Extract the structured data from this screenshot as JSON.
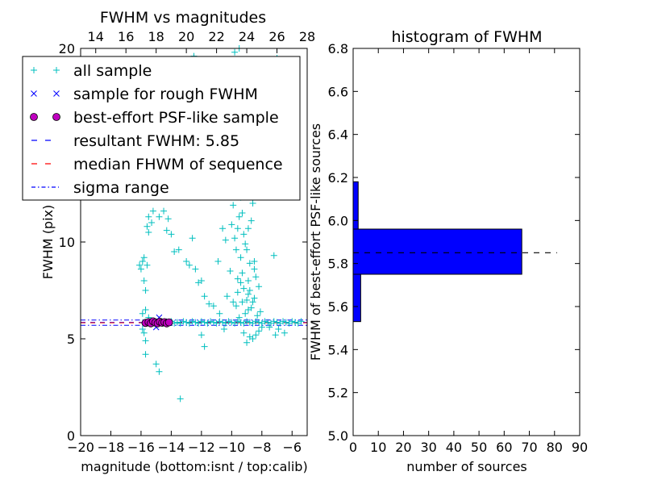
{
  "chart_data": [
    {
      "type": "scatter",
      "title": "FWHM vs magnitudes",
      "xlabel": "magnitude (bottom:isnt / top:calib)",
      "ylabel": "FWHM (pix)",
      "xlim": [
        -20,
        -5
      ],
      "ylim": [
        0,
        20
      ],
      "top_xlim": [
        13,
        28
      ],
      "x_ticks": [
        -20,
        -18,
        -16,
        -14,
        -12,
        -10,
        -8,
        -6
      ],
      "x_tick_labels": [
        "−20",
        "−18",
        "−16",
        "−14",
        "−12",
        "−10",
        "−8",
        "−6"
      ],
      "top_x_ticks": [
        14,
        16,
        18,
        20,
        22,
        24,
        26,
        28
      ],
      "top_x_tick_labels": [
        "14",
        "16",
        "18",
        "20",
        "22",
        "24",
        "26",
        "28"
      ],
      "y_ticks": [
        0,
        5,
        10
      ],
      "y_tick_labels": [
        "0",
        "5",
        "10"
      ],
      "top_left_y_label": "20",
      "legend_position": "upper-left",
      "legend": [
        {
          "label": "all sample",
          "marker": "+",
          "color": "#00bfbf"
        },
        {
          "label": "sample for rough FWHM",
          "marker": "x",
          "color": "#0000ff"
        },
        {
          "label": "best-effort PSF-like sample",
          "marker": "o",
          "color": "#bf00bf"
        },
        {
          "label": "resultant FWHM: 5.85",
          "line": "dashed",
          "color": "#0000ff"
        },
        {
          "label": "median FHWM of sequence",
          "line": "dashed",
          "color": "#ff0000"
        },
        {
          "label": "sigma range",
          "line": "dashdot",
          "color": "#0000ff"
        }
      ],
      "reference_lines": {
        "resultant_fwhm": 5.85,
        "median_fwhm": 5.83,
        "sigma_range": [
          5.7,
          5.97
        ]
      },
      "series": [
        {
          "name": "all sample",
          "marker": "+",
          "color": "#00bfbf",
          "points": [
            [
              -15.8,
              5.8
            ],
            [
              -15.6,
              5.85
            ],
            [
              -15.4,
              5.9
            ],
            [
              -15.2,
              5.8
            ],
            [
              -15.0,
              5.85
            ],
            [
              -14.8,
              5.9
            ],
            [
              -14.6,
              5.8
            ],
            [
              -14.4,
              5.85
            ],
            [
              -14.2,
              5.8
            ],
            [
              -14.0,
              5.9
            ],
            [
              -13.8,
              5.8
            ],
            [
              -13.6,
              5.85
            ],
            [
              -13.4,
              5.8
            ],
            [
              -13.2,
              5.9
            ],
            [
              -13.0,
              5.85
            ],
            [
              -12.8,
              5.8
            ],
            [
              -12.6,
              5.9
            ],
            [
              -12.4,
              5.85
            ],
            [
              -12.2,
              5.8
            ],
            [
              -12.0,
              5.9
            ],
            [
              -11.8,
              5.85
            ],
            [
              -11.6,
              5.8
            ],
            [
              -11.4,
              5.9
            ],
            [
              -11.2,
              5.85
            ],
            [
              -11.0,
              5.8
            ],
            [
              -10.8,
              5.9
            ],
            [
              -10.6,
              5.85
            ],
            [
              -10.4,
              5.8
            ],
            [
              -10.2,
              5.9
            ],
            [
              -10.0,
              5.85
            ],
            [
              -9.8,
              5.8
            ],
            [
              -9.6,
              5.9
            ],
            [
              -9.4,
              5.85
            ],
            [
              -9.2,
              5.8
            ],
            [
              -9.0,
              5.9
            ],
            [
              -8.8,
              5.85
            ],
            [
              -8.6,
              5.8
            ],
            [
              -8.4,
              5.9
            ],
            [
              -8.2,
              5.85
            ],
            [
              -8.0,
              5.8
            ],
            [
              -7.8,
              5.9
            ],
            [
              -7.6,
              5.85
            ],
            [
              -7.4,
              5.8
            ],
            [
              -7.2,
              5.9
            ],
            [
              -7.0,
              5.85
            ],
            [
              -6.8,
              5.8
            ],
            [
              -6.6,
              5.9
            ],
            [
              -6.4,
              5.85
            ],
            [
              -6.2,
              5.8
            ],
            [
              -6.0,
              5.9
            ],
            [
              -5.8,
              5.85
            ],
            [
              -5.6,
              5.8
            ],
            [
              -5.4,
              5.9
            ],
            [
              -15.9,
              6.3
            ],
            [
              -15.7,
              6.5
            ],
            [
              -15.5,
              6.1
            ],
            [
              -15.9,
              5.5
            ],
            [
              -15.8,
              5.3
            ],
            [
              -15.7,
              4.9
            ],
            [
              -15.7,
              4.2
            ],
            [
              -15.0,
              3.7
            ],
            [
              -14.8,
              3.3
            ],
            [
              -13.4,
              1.9
            ],
            [
              -16.1,
              8.8
            ],
            [
              -15.9,
              9.0
            ],
            [
              -15.8,
              9.2
            ],
            [
              -16.0,
              8.6
            ],
            [
              -15.6,
              8.8
            ],
            [
              -15.8,
              8.0
            ],
            [
              -15.7,
              7.5
            ],
            [
              -15.5,
              10.5
            ],
            [
              -15.3,
              11.0
            ],
            [
              -15.5,
              11.3
            ],
            [
              -15.2,
              11.6
            ],
            [
              -15.6,
              10.8
            ],
            [
              -14.8,
              11.3
            ],
            [
              -14.5,
              11.6
            ],
            [
              -14.3,
              10.6
            ],
            [
              -14.0,
              10.4
            ],
            [
              -14.2,
              11.2
            ],
            [
              -13.8,
              9.5
            ],
            [
              -13.5,
              9.6
            ],
            [
              -13.0,
              9.0
            ],
            [
              -12.8,
              8.8
            ],
            [
              -12.6,
              10.2
            ],
            [
              -12.4,
              8.6
            ],
            [
              -12.2,
              7.9
            ],
            [
              -12.0,
              8.0
            ],
            [
              -11.8,
              7.2
            ],
            [
              -11.5,
              6.8
            ],
            [
              -11.2,
              6.7
            ],
            [
              -10.9,
              9.0
            ],
            [
              -10.6,
              10.7
            ],
            [
              -10.4,
              10.1
            ],
            [
              -10.2,
              12.5
            ],
            [
              -10.0,
              10.9
            ],
            [
              -9.9,
              11.9
            ],
            [
              -9.8,
              10.2
            ],
            [
              -9.7,
              9.6
            ],
            [
              -9.6,
              10.7
            ],
            [
              -9.5,
              11.3
            ],
            [
              -9.4,
              12.3
            ],
            [
              -9.3,
              11.5
            ],
            [
              -9.2,
              10.4
            ],
            [
              -9.1,
              9.9
            ],
            [
              -9.0,
              9.6
            ],
            [
              -8.9,
              10.7
            ],
            [
              -8.8,
              8.9
            ],
            [
              -8.7,
              11.1
            ],
            [
              -8.6,
              12.0
            ],
            [
              -8.5,
              9.0
            ],
            [
              -8.4,
              8.2
            ],
            [
              -7.2,
              9.3
            ],
            [
              -9.3,
              8.4
            ],
            [
              -9.6,
              7.4
            ],
            [
              -10.1,
              8.5
            ],
            [
              -8.9,
              7.3
            ],
            [
              -9.2,
              7.6
            ],
            [
              -9.0,
              7.0
            ],
            [
              -8.8,
              7.5
            ],
            [
              -9.4,
              7.9
            ],
            [
              -8.6,
              6.9
            ],
            [
              -8.9,
              6.5
            ],
            [
              -9.1,
              6.3
            ],
            [
              -8.7,
              6.6
            ],
            [
              -9.3,
              6.9
            ],
            [
              -8.5,
              7.1
            ],
            [
              -8.3,
              6.2
            ],
            [
              -9.5,
              6.1
            ],
            [
              -9.7,
              6.7
            ],
            [
              -8.1,
              6.4
            ],
            [
              -8.2,
              5.4
            ],
            [
              -8.0,
              5.6
            ],
            [
              -8.4,
              5.2
            ],
            [
              -8.8,
              5.1
            ],
            [
              -9.2,
              5.3
            ],
            [
              -9.0,
              4.8
            ],
            [
              -8.6,
              5.0
            ],
            [
              -7.5,
              5.6
            ],
            [
              -7.1,
              5.2
            ],
            [
              -6.9,
              5.5
            ],
            [
              -6.5,
              5.3
            ],
            [
              -10.5,
              5.5
            ],
            [
              -11.8,
              4.6
            ],
            [
              -12.0,
              5.2
            ],
            [
              -10.8,
              6.3
            ],
            [
              -10.3,
              7.2
            ],
            [
              -9.9,
              6.9
            ],
            [
              -9.6,
              8.1
            ],
            [
              -8.2,
              7.7
            ],
            [
              -8.5,
              8.6
            ],
            [
              -8.9,
              8.0
            ],
            [
              -9.4,
              9.2
            ],
            [
              -12.5,
              19.6
            ],
            [
              -9.8,
              19.8
            ],
            [
              -9.5,
              20.0
            ],
            [
              -7.0,
              19.5
            ],
            [
              -10.6,
              17.0
            ],
            [
              -9.0,
              17.5
            ],
            [
              -9.8,
              15.5
            ],
            [
              -12.7,
              14.0
            ],
            [
              -11.0,
              14.3
            ],
            [
              -8.7,
              14.6
            ],
            [
              -9.2,
              14.0
            ],
            [
              -10.4,
              13.5
            ],
            [
              -9.0,
              13.2
            ],
            [
              -8.0,
              13.5
            ]
          ]
        },
        {
          "name": "sample for rough FWHM",
          "marker": "x",
          "color": "#0000ff",
          "points": [
            [
              -15.7,
              5.8
            ],
            [
              -15.5,
              5.85
            ],
            [
              -15.3,
              5.8
            ],
            [
              -15.1,
              5.9
            ],
            [
              -14.9,
              5.85
            ],
            [
              -14.7,
              5.8
            ],
            [
              -14.5,
              5.9
            ],
            [
              -14.3,
              5.85
            ],
            [
              -14.8,
              6.1
            ],
            [
              -15.0,
              5.6
            ]
          ]
        },
        {
          "name": "best-effort PSF-like sample",
          "marker": "o",
          "color": "#bf00bf",
          "points": [
            [
              -15.7,
              5.82
            ],
            [
              -15.5,
              5.86
            ],
            [
              -15.35,
              5.8
            ],
            [
              -15.2,
              5.9
            ],
            [
              -15.05,
              5.84
            ],
            [
              -14.9,
              5.8
            ],
            [
              -14.75,
              5.88
            ],
            [
              -14.6,
              5.83
            ],
            [
              -14.45,
              5.86
            ],
            [
              -14.3,
              5.8
            ],
            [
              -14.15,
              5.85
            ]
          ]
        }
      ]
    },
    {
      "type": "bar",
      "orientation": "horizontal",
      "title": "histogram of FWHM",
      "xlabel": "number of sources",
      "ylabel": "FWHM of best-effort PSF-like sources",
      "xlim": [
        0,
        90
      ],
      "ylim": [
        5.0,
        6.8
      ],
      "x_ticks": [
        0,
        10,
        20,
        30,
        40,
        50,
        60,
        70,
        80,
        90
      ],
      "x_tick_labels": [
        "0",
        "10",
        "20",
        "30",
        "40",
        "50",
        "60",
        "70",
        "80",
        "90"
      ],
      "y_ticks": [
        5.0,
        5.2,
        5.4,
        5.6,
        5.8,
        6.0,
        6.2,
        6.4,
        6.6,
        6.8
      ],
      "y_tick_labels": [
        "5.0",
        "5.2",
        "5.4",
        "5.6",
        "5.8",
        "6.0",
        "6.2",
        "6.4",
        "6.6",
        "6.8"
      ],
      "bar_color": "#0000ff",
      "bins": [
        {
          "y0": 5.53,
          "y1": 5.75,
          "count": 3
        },
        {
          "y0": 5.75,
          "y1": 5.96,
          "count": 67
        },
        {
          "y0": 5.96,
          "y1": 6.18,
          "count": 2
        }
      ],
      "reference_line": {
        "y": 5.85,
        "x_range": [
          0,
          81
        ],
        "style": "dashed",
        "color": "#000000"
      }
    }
  ]
}
